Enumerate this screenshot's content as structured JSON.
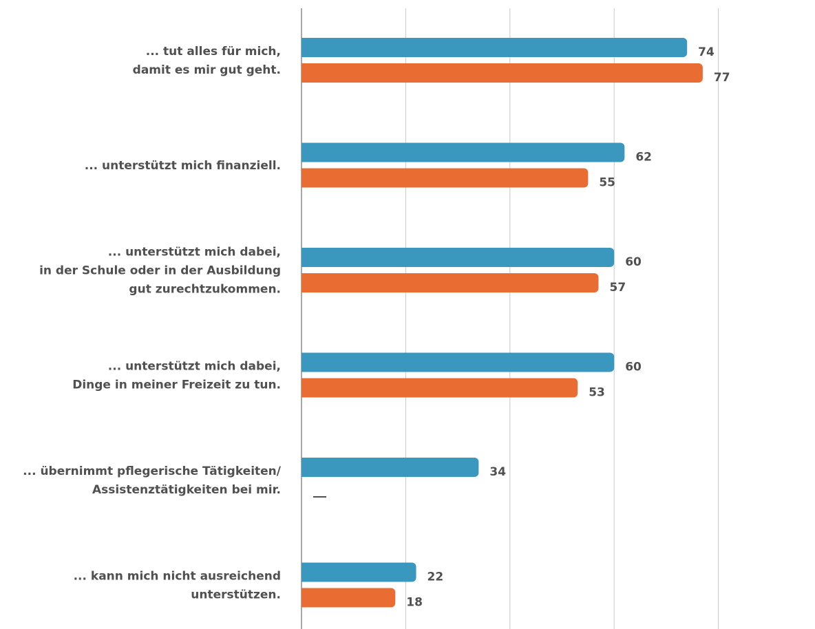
{
  "chart_data": {
    "type": "bar",
    "orientation": "horizontal",
    "categories": [
      [
        "... tut alles für mich,",
        "damit es mir gut geht."
      ],
      [
        "... unterstützt mich finanziell."
      ],
      [
        "... unterstützt mich dabei,",
        "in der Schule oder in der Ausbildung",
        "gut zurechtzukommen."
      ],
      [
        "... unterstützt mich dabei,",
        "Dinge in meiner Freizeit zu tun."
      ],
      [
        "... übernimmt pflegerische Tätigkeiten/",
        "Assistenztätigkeiten bei mir."
      ],
      [
        "... kann mich nicht ausreichend",
        "unterstützen."
      ]
    ],
    "series": [
      {
        "values": [
          74,
          62,
          60,
          60,
          34,
          22
        ],
        "color": "#3a97bd"
      },
      {
        "values": [
          77,
          55,
          57,
          53,
          null,
          18
        ],
        "color": "#e96d33",
        "missing_marker": "—"
      }
    ],
    "xlim": [
      0,
      100
    ],
    "grid": true,
    "legend": false
  }
}
